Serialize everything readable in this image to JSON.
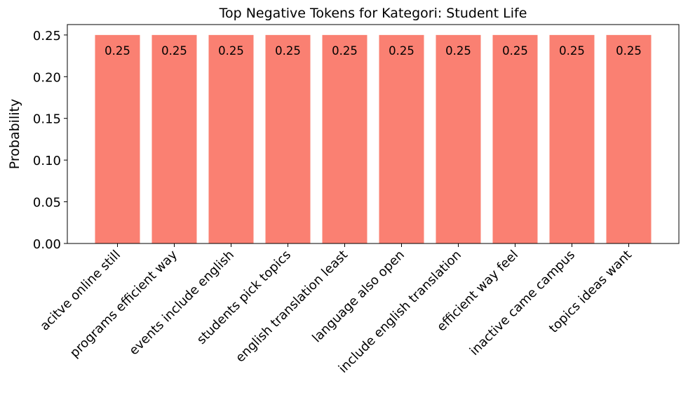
{
  "chart_data": {
    "type": "bar",
    "title": "Top Negative Tokens for Kategori: Student Life",
    "xlabel": "",
    "ylabel": "Probability",
    "categories": [
      "acitve online still",
      "programs efficient way",
      "events include english",
      "students pick topics",
      "english translation least",
      "language also open",
      "include english translation",
      "efficient way feel",
      "inactive came campus",
      "topics ideas want"
    ],
    "values": [
      0.25,
      0.25,
      0.25,
      0.25,
      0.25,
      0.25,
      0.25,
      0.25,
      0.25,
      0.25
    ],
    "data_labels": [
      "0.25",
      "0.25",
      "0.25",
      "0.25",
      "0.25",
      "0.25",
      "0.25",
      "0.25",
      "0.25",
      "0.25"
    ],
    "ylim": [
      0,
      0.2625
    ],
    "yticks": [
      0.0,
      0.05,
      0.1,
      0.15,
      0.2,
      0.25
    ],
    "ytick_labels": [
      "0.00",
      "0.05",
      "0.10",
      "0.15",
      "0.20",
      "0.25"
    ],
    "bar_color": "#fa8072",
    "grid": false,
    "legend": "none"
  }
}
